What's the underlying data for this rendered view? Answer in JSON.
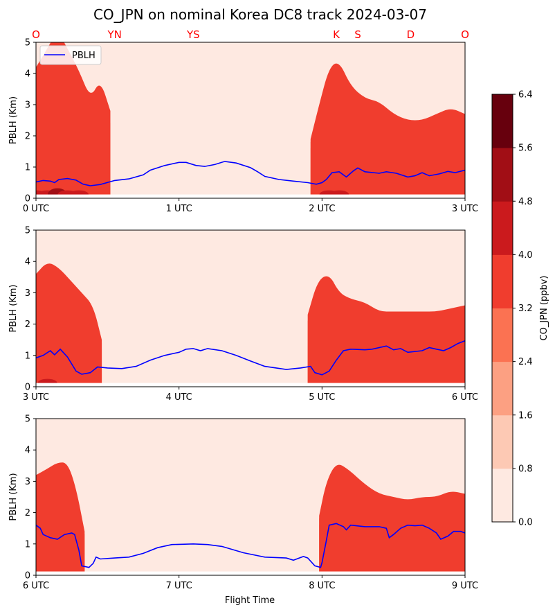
{
  "chart_data": {
    "type": "contour",
    "title": "CO_JPN on nominal Korea DC8 track 2024-03-07",
    "sites": [
      "O",
      "YN",
      "YS",
      "K",
      "S",
      "D",
      "O"
    ],
    "site_times": [
      0,
      0.55,
      1.1,
      2.1,
      2.25,
      2.62,
      3.0
    ],
    "xlabel": "Flight Time",
    "ylabel": "PBLH (Km)",
    "ylim": [
      0,
      5
    ],
    "yticks": [
      "0",
      "1",
      "2",
      "3",
      "4",
      "5"
    ],
    "legend": {
      "position": "top-left",
      "entries": [
        "PBLH"
      ]
    },
    "colorbar": {
      "label": "CO_JPN (ppbv)",
      "ticks": [
        "0.0",
        "0.8",
        "1.6",
        "2.4",
        "3.2",
        "4.0",
        "4.8",
        "5.6",
        "6.4"
      ],
      "colors": [
        "#fee9e1",
        "#fdc9b4",
        "#fca082",
        "#fb7252",
        "#f03d2e",
        "#cb1a1d",
        "#a10e15",
        "#67000d"
      ]
    },
    "panels": [
      {
        "xticks": [
          "0 UTC",
          "1 UTC",
          "2 UTC",
          "3 UTC"
        ],
        "xrange": [
          0,
          3
        ],
        "pblh": [
          [
            0,
            0.52
          ],
          [
            0.05,
            0.57
          ],
          [
            0.1,
            0.55
          ],
          [
            0.13,
            0.5
          ],
          [
            0.16,
            0.6
          ],
          [
            0.22,
            0.63
          ],
          [
            0.28,
            0.58
          ],
          [
            0.33,
            0.45
          ],
          [
            0.38,
            0.4
          ],
          [
            0.45,
            0.44
          ],
          [
            0.55,
            0.57
          ],
          [
            0.65,
            0.62
          ],
          [
            0.75,
            0.75
          ],
          [
            0.8,
            0.9
          ],
          [
            0.9,
            1.05
          ],
          [
            1.0,
            1.15
          ],
          [
            1.05,
            1.15
          ],
          [
            1.12,
            1.05
          ],
          [
            1.18,
            1.02
          ],
          [
            1.25,
            1.08
          ],
          [
            1.32,
            1.18
          ],
          [
            1.4,
            1.13
          ],
          [
            1.5,
            0.98
          ],
          [
            1.55,
            0.85
          ],
          [
            1.6,
            0.7
          ],
          [
            1.7,
            0.6
          ],
          [
            1.8,
            0.55
          ],
          [
            1.9,
            0.5
          ],
          [
            1.96,
            0.45
          ],
          [
            2.0,
            0.5
          ],
          [
            2.03,
            0.6
          ],
          [
            2.07,
            0.82
          ],
          [
            2.12,
            0.85
          ],
          [
            2.17,
            0.68
          ],
          [
            2.22,
            0.88
          ],
          [
            2.25,
            0.97
          ],
          [
            2.3,
            0.85
          ],
          [
            2.4,
            0.8
          ],
          [
            2.45,
            0.85
          ],
          [
            2.52,
            0.8
          ],
          [
            2.6,
            0.68
          ],
          [
            2.65,
            0.72
          ],
          [
            2.7,
            0.82
          ],
          [
            2.75,
            0.72
          ],
          [
            2.82,
            0.78
          ],
          [
            2.88,
            0.86
          ],
          [
            2.93,
            0.82
          ],
          [
            3.0,
            0.9
          ]
        ],
        "co_profiles": [
          [
            0,
            1.6,
            2.5,
            3.2,
            4.2
          ],
          [
            0.08,
            1.8,
            2.8,
            3.6,
            4.8
          ],
          [
            0.15,
            1.7,
            2.9,
            3.9,
            5.4
          ],
          [
            0.22,
            1.5,
            2.7,
            3.6,
            4.8
          ],
          [
            0.3,
            1.3,
            2.3,
            3.1,
            4.1
          ],
          [
            0.38,
            1.0,
            1.7,
            2.4,
            3.2
          ],
          [
            0.45,
            1.7,
            2.6,
            3.2,
            3.8
          ],
          [
            0.52,
            1.2,
            2.0,
            2.4,
            2.8
          ],
          [
            0.58,
            0,
            0,
            0,
            0
          ],
          [
            1.85,
            0,
            0,
            0,
            0
          ],
          [
            1.92,
            1.0,
            1.6,
            1.8,
            1.9
          ],
          [
            1.98,
            1.5,
            2.1,
            2.6,
            3.0
          ],
          [
            2.05,
            1.4,
            2.6,
            3.3,
            4.2
          ],
          [
            2.12,
            1.6,
            2.6,
            3.4,
            4.4
          ],
          [
            2.2,
            1.2,
            2.2,
            3.0,
            3.6
          ],
          [
            2.3,
            1.3,
            2.0,
            2.8,
            3.2
          ],
          [
            2.4,
            1.2,
            1.9,
            2.7,
            3.1
          ],
          [
            2.5,
            1.4,
            2.0,
            2.5,
            2.7
          ],
          [
            2.6,
            1.3,
            1.8,
            2.3,
            2.5
          ],
          [
            2.7,
            1.2,
            1.8,
            2.4,
            2.5
          ],
          [
            2.8,
            1.3,
            2.0,
            2.5,
            2.7
          ],
          [
            2.9,
            1.2,
            1.8,
            2.4,
            2.9
          ],
          [
            3.0,
            1.2,
            1.8,
            2.2,
            2.7
          ]
        ]
      },
      {
        "xticks": [
          "3 UTC",
          "4 UTC",
          "5 UTC",
          "6 UTC"
        ],
        "xrange": [
          3,
          6
        ],
        "pblh": [
          [
            3.0,
            0.92
          ],
          [
            3.05,
            1.0
          ],
          [
            3.1,
            1.15
          ],
          [
            3.13,
            1.02
          ],
          [
            3.17,
            1.2
          ],
          [
            3.22,
            0.95
          ],
          [
            3.28,
            0.5
          ],
          [
            3.32,
            0.4
          ],
          [
            3.38,
            0.45
          ],
          [
            3.43,
            0.63
          ],
          [
            3.5,
            0.6
          ],
          [
            3.6,
            0.58
          ],
          [
            3.7,
            0.65
          ],
          [
            3.8,
            0.85
          ],
          [
            3.9,
            1.0
          ],
          [
            4.0,
            1.1
          ],
          [
            4.05,
            1.2
          ],
          [
            4.1,
            1.22
          ],
          [
            4.15,
            1.15
          ],
          [
            4.2,
            1.22
          ],
          [
            4.3,
            1.15
          ],
          [
            4.4,
            1.0
          ],
          [
            4.5,
            0.82
          ],
          [
            4.6,
            0.65
          ],
          [
            4.75,
            0.55
          ],
          [
            4.85,
            0.6
          ],
          [
            4.92,
            0.65
          ],
          [
            4.95,
            0.45
          ],
          [
            5.0,
            0.38
          ],
          [
            5.05,
            0.5
          ],
          [
            5.1,
            0.85
          ],
          [
            5.15,
            1.15
          ],
          [
            5.2,
            1.2
          ],
          [
            5.3,
            1.18
          ],
          [
            5.35,
            1.2
          ],
          [
            5.45,
            1.3
          ],
          [
            5.5,
            1.18
          ],
          [
            5.55,
            1.22
          ],
          [
            5.6,
            1.1
          ],
          [
            5.7,
            1.15
          ],
          [
            5.75,
            1.25
          ],
          [
            5.8,
            1.2
          ],
          [
            5.85,
            1.15
          ],
          [
            5.9,
            1.25
          ],
          [
            5.95,
            1.38
          ],
          [
            6.0,
            1.47
          ]
        ],
        "co_profiles": [
          [
            3.0,
            1.6,
            2.4,
            3.0,
            3.6
          ],
          [
            3.08,
            1.8,
            2.7,
            3.3,
            4.0
          ],
          [
            3.16,
            1.6,
            2.6,
            3.2,
            3.8
          ],
          [
            3.24,
            1.4,
            2.3,
            2.9,
            3.4
          ],
          [
            3.32,
            1.2,
            2.0,
            2.6,
            3.0
          ],
          [
            3.4,
            1.4,
            2.0,
            2.4,
            2.6
          ],
          [
            3.46,
            0.8,
            1.2,
            1.4,
            1.5
          ],
          [
            3.5,
            0,
            0,
            0,
            0
          ],
          [
            4.85,
            0,
            0,
            0,
            0
          ],
          [
            4.9,
            1.3,
            1.8,
            2.1,
            2.3
          ],
          [
            4.97,
            1.7,
            2.4,
            3.0,
            3.4
          ],
          [
            5.05,
            1.6,
            2.5,
            3.1,
            3.6
          ],
          [
            5.12,
            1.6,
            2.3,
            2.8,
            3.0
          ],
          [
            5.2,
            1.8,
            2.2,
            2.6,
            2.8
          ],
          [
            5.3,
            1.5,
            2.1,
            2.5,
            2.7
          ],
          [
            5.4,
            1.5,
            2.0,
            2.3,
            2.4
          ],
          [
            5.5,
            1.5,
            1.9,
            2.3,
            2.4
          ],
          [
            5.6,
            1.8,
            2.0,
            2.3,
            2.4
          ],
          [
            5.7,
            1.9,
            2.1,
            2.3,
            2.4
          ],
          [
            5.8,
            1.6,
            2.0,
            2.3,
            2.4
          ],
          [
            5.9,
            1.5,
            1.9,
            2.2,
            2.5
          ],
          [
            6.0,
            1.4,
            1.8,
            2.2,
            2.6
          ]
        ]
      },
      {
        "xticks": [
          "6 UTC",
          "7 UTC",
          "8 UTC",
          "9 UTC"
        ],
        "xrange": [
          6,
          9
        ],
        "pblh": [
          [
            6.0,
            1.6
          ],
          [
            6.03,
            1.5
          ],
          [
            6.05,
            1.3
          ],
          [
            6.1,
            1.2
          ],
          [
            6.15,
            1.15
          ],
          [
            6.2,
            1.3
          ],
          [
            6.25,
            1.35
          ],
          [
            6.27,
            1.3
          ],
          [
            6.3,
            0.8
          ],
          [
            6.32,
            0.3
          ],
          [
            6.37,
            0.25
          ],
          [
            6.4,
            0.38
          ],
          [
            6.42,
            0.58
          ],
          [
            6.45,
            0.52
          ],
          [
            6.55,
            0.55
          ],
          [
            6.65,
            0.58
          ],
          [
            6.75,
            0.7
          ],
          [
            6.85,
            0.88
          ],
          [
            6.95,
            0.98
          ],
          [
            7.1,
            1.0
          ],
          [
            7.2,
            0.98
          ],
          [
            7.3,
            0.92
          ],
          [
            7.45,
            0.72
          ],
          [
            7.6,
            0.58
          ],
          [
            7.75,
            0.55
          ],
          [
            7.8,
            0.48
          ],
          [
            7.87,
            0.6
          ],
          [
            7.9,
            0.55
          ],
          [
            7.95,
            0.3
          ],
          [
            7.99,
            0.25
          ],
          [
            8.0,
            0.4
          ],
          [
            8.03,
            1.1
          ],
          [
            8.05,
            1.6
          ],
          [
            8.1,
            1.65
          ],
          [
            8.15,
            1.55
          ],
          [
            8.17,
            1.45
          ],
          [
            8.2,
            1.6
          ],
          [
            8.3,
            1.55
          ],
          [
            8.4,
            1.55
          ],
          [
            8.45,
            1.5
          ],
          [
            8.47,
            1.2
          ],
          [
            8.5,
            1.3
          ],
          [
            8.55,
            1.5
          ],
          [
            8.6,
            1.6
          ],
          [
            8.65,
            1.58
          ],
          [
            8.7,
            1.6
          ],
          [
            8.75,
            1.5
          ],
          [
            8.8,
            1.35
          ],
          [
            8.83,
            1.15
          ],
          [
            8.88,
            1.25
          ],
          [
            8.92,
            1.4
          ],
          [
            8.97,
            1.4
          ],
          [
            9.0,
            1.35
          ]
        ],
        "co_profiles": [
          [
            6.0,
            1.5,
            2.3,
            2.8,
            3.2
          ],
          [
            6.08,
            1.8,
            2.6,
            3.0,
            3.4
          ],
          [
            6.15,
            1.5,
            2.4,
            3.0,
            3.6
          ],
          [
            6.22,
            1.4,
            2.3,
            2.9,
            3.6
          ],
          [
            6.28,
            1.2,
            1.8,
            2.3,
            2.8
          ],
          [
            6.34,
            0.7,
            1.1,
            1.3,
            1.4
          ],
          [
            6.38,
            0,
            0,
            0,
            0
          ],
          [
            7.93,
            0,
            0,
            0,
            0
          ],
          [
            7.98,
            1.2,
            1.6,
            1.8,
            1.9
          ],
          [
            8.03,
            1.5,
            2.2,
            2.7,
            3.0
          ],
          [
            8.1,
            1.6,
            2.6,
            3.1,
            3.6
          ],
          [
            8.18,
            1.6,
            2.5,
            2.9,
            3.4
          ],
          [
            8.3,
            1.5,
            2.2,
            2.6,
            2.9
          ],
          [
            8.4,
            1.4,
            2.1,
            2.4,
            2.6
          ],
          [
            8.5,
            1.7,
            2.1,
            2.3,
            2.5
          ],
          [
            8.6,
            1.6,
            2.0,
            2.3,
            2.4
          ],
          [
            8.7,
            1.5,
            1.9,
            2.2,
            2.5
          ],
          [
            8.8,
            1.5,
            1.9,
            2.3,
            2.5
          ],
          [
            8.9,
            1.4,
            1.8,
            2.2,
            2.7
          ],
          [
            9.0,
            1.3,
            1.8,
            2.2,
            2.6
          ]
        ]
      }
    ]
  }
}
